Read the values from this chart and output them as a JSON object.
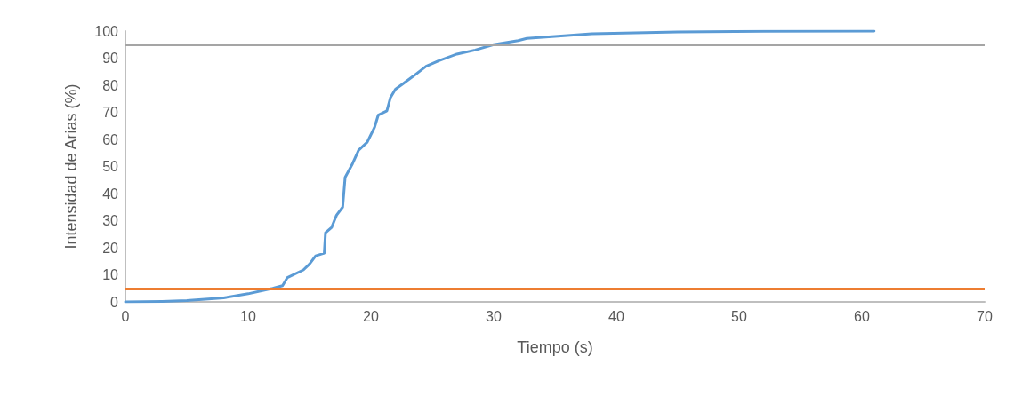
{
  "chart_data": {
    "type": "line",
    "xlabel": "Tiempo (s)",
    "ylabel": "Intensidad de Arias (%)",
    "xlim": [
      0,
      70
    ],
    "xticks": [
      0,
      10,
      20,
      30,
      40,
      50,
      60,
      70
    ],
    "ylim": [
      0,
      100
    ],
    "yticks": [
      0,
      10,
      20,
      30,
      40,
      50,
      60,
      70,
      80,
      90,
      100
    ],
    "marker": "none",
    "line_style": "solid",
    "series": [
      {
        "color": "#5b9bd5",
        "x": [
          0,
          3,
          5,
          8,
          10,
          12,
          12.8,
          13.2,
          14.5,
          15,
          15.5,
          16.2,
          16.3,
          16.8,
          17.2,
          17.7,
          17.9,
          18.5,
          19,
          19.7,
          20.3,
          20.6,
          21.3,
          21.6,
          22,
          22.6,
          23.5,
          24.5,
          25.5,
          27,
          28.5,
          30,
          32,
          32.7,
          35,
          38,
          45,
          52,
          61
        ],
        "values": [
          0,
          0.2,
          0.5,
          1.5,
          3,
          5,
          6,
          9,
          11.8,
          14,
          17,
          18,
          25.5,
          27.5,
          32,
          35,
          46,
          51,
          56,
          59,
          64.5,
          69,
          70.5,
          75.5,
          78.5,
          80.5,
          83.5,
          87,
          89,
          91.5,
          93,
          95,
          96.5,
          97.3,
          98,
          99,
          99.7,
          99.9,
          100
        ]
      }
    ],
    "ref_lines": [
      {
        "axis": "y",
        "value": 95,
        "color": "#a5a5a5",
        "line_style": "solid"
      },
      {
        "axis": "y",
        "value": 5,
        "color": "#ed7d31",
        "line_style": "solid"
      }
    ]
  }
}
